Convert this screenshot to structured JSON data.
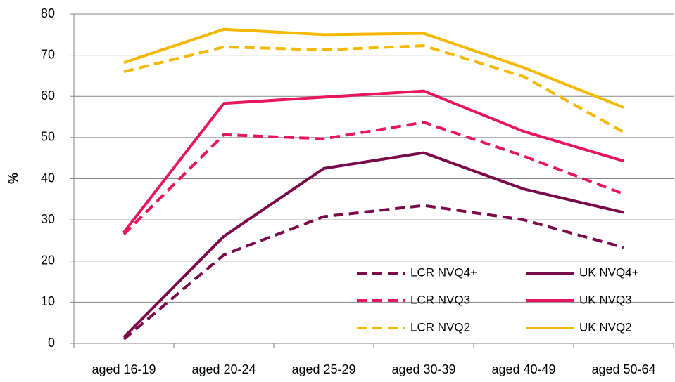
{
  "chart_data": {
    "type": "line",
    "y_label": "%",
    "categories": [
      "aged 16-19",
      "aged 20-24",
      "aged 25-29",
      "aged 30-39",
      "aged 40-49",
      "aged 50-64"
    ],
    "series": [
      {
        "name": "LCR NVQ4+",
        "color": "#7b0a4a",
        "dashed": true,
        "values": [
          1,
          21.5,
          30.8,
          33.5,
          30,
          23.3
        ]
      },
      {
        "name": "UK NVQ4+",
        "color": "#7b0a4a",
        "dashed": false,
        "values": [
          1.5,
          26,
          42.5,
          46.3,
          37.5,
          31.8
        ]
      },
      {
        "name": "LCR NVQ3",
        "color": "#e8175d",
        "dashed": true,
        "values": [
          26.5,
          50.7,
          49.7,
          53.7,
          45.5,
          36.3
        ]
      },
      {
        "name": "UK NVQ3",
        "color": "#e8175d",
        "dashed": false,
        "values": [
          27,
          58.3,
          59.8,
          61.3,
          51.5,
          44.3
        ]
      },
      {
        "name": "LCR NVQ2",
        "color": "#f5b800",
        "dashed": true,
        "values": [
          66,
          72,
          71.3,
          72.3,
          64.8,
          51.3
        ]
      },
      {
        "name": "UK NVQ2",
        "color": "#f5b800",
        "dashed": false,
        "values": [
          68.2,
          76.3,
          75,
          75.3,
          67,
          57.3
        ]
      }
    ],
    "ylim": [
      0,
      80
    ],
    "yticks": [
      0,
      10,
      20,
      30,
      40,
      50,
      60,
      70,
      80
    ],
    "grid": true,
    "legend": "bottom-right"
  }
}
